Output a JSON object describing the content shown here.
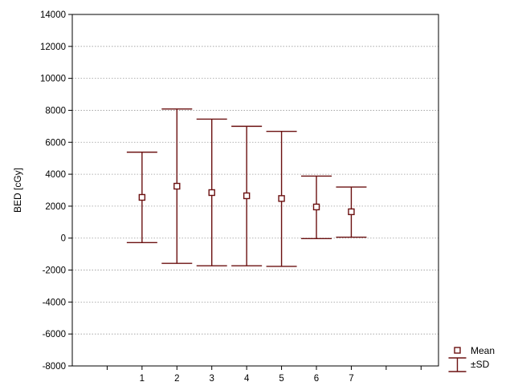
{
  "chart_data": {
    "type": "errorbar",
    "xlabel": "",
    "ylabel": "BED [cGy]",
    "categories": [
      "1",
      "2",
      "3",
      "4",
      "5",
      "6",
      "7"
    ],
    "x_tick_labels": [
      "1",
      "2",
      "3",
      "4",
      "5",
      "6",
      "7"
    ],
    "x_range": [
      -1.0,
      9.5
    ],
    "ylim": [
      -8000,
      14000
    ],
    "y_ticks": [
      -8000,
      -6000,
      -4000,
      -2000,
      0,
      2000,
      4000,
      6000,
      8000,
      10000,
      12000,
      14000
    ],
    "y_tick_labels": [
      "-8000",
      "-6000",
      "-4000",
      "-2000",
      "0",
      "2000",
      "4000",
      "6000",
      "8000",
      "10000",
      "12000",
      "14000"
    ],
    "grid": "horizontal dotted",
    "series": [
      {
        "name": "Mean",
        "values": [
          2550,
          3250,
          2850,
          2650,
          2480,
          1950,
          1650
        ],
        "sd_upper": [
          5380,
          8080,
          7450,
          7000,
          6680,
          3880,
          3200
        ],
        "sd_lower": [
          -280,
          -1580,
          -1730,
          -1730,
          -1770,
          -30,
          60
        ]
      }
    ],
    "legend": {
      "placement": "bottom-right",
      "items": [
        {
          "label": "Mean",
          "marker": "square"
        },
        {
          "label": "±SD",
          "marker": "errorbar"
        }
      ]
    },
    "colors": {
      "errorbar": "#6b1010",
      "grid": "#9a9a9a",
      "axis": "#000000"
    }
  }
}
